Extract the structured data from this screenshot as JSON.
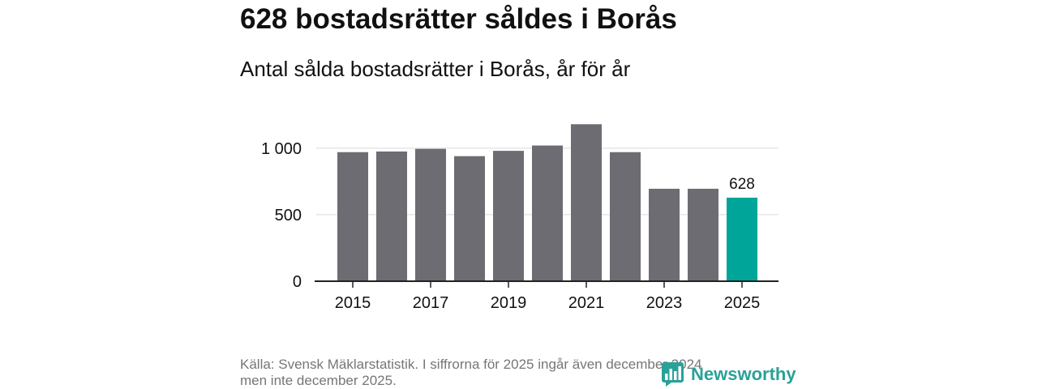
{
  "chart_data": {
    "type": "bar",
    "title": "628 bostadsrätter såldes i Borås",
    "subtitle": "Antal sålda bostadsrätter i Borås, år för år",
    "x": [
      2015,
      2016,
      2017,
      2018,
      2019,
      2020,
      2021,
      2022,
      2023,
      2024,
      2025
    ],
    "values": [
      970,
      975,
      995,
      940,
      980,
      1020,
      1180,
      970,
      695,
      695,
      628
    ],
    "xtick_labels": [
      "2015",
      "2017",
      "2019",
      "2021",
      "2023",
      "2025"
    ],
    "yticks": [
      0,
      500,
      1000
    ],
    "ytick_labels": [
      "0",
      "500",
      "1 000"
    ],
    "ylim": [
      0,
      1200
    ],
    "grid": true,
    "highlight": {
      "x": 2025,
      "label": "628"
    }
  },
  "footer": {
    "source_lines": [
      "Källa: Svensk Mäklarstatistik. I siffrorna för 2025 ingår även december 2024",
      "men inte december 2025."
    ]
  },
  "logo": {
    "text": "Newsworthy",
    "icon": "bar-chart-speech-bubble-icon"
  },
  "colors": {
    "text": "#111111",
    "muted": "#767676",
    "bar": "#6d6c72",
    "highlight": "#00a599",
    "grid": "#d9d9d9",
    "axis": "#222222",
    "logo": "#2aa198"
  }
}
